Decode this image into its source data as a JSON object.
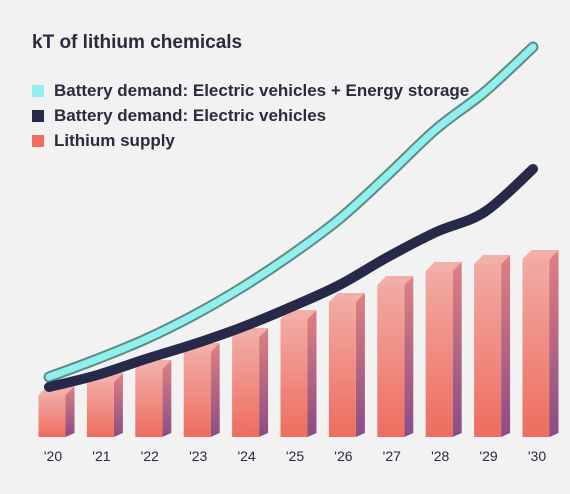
{
  "title": "kT of lithium chemicals",
  "legend": [
    {
      "label": "Battery demand: Electric vehicles + Energy storage",
      "color": "#8ff0ee"
    },
    {
      "label": "Battery demand: Electric vehicles",
      "color": "#262a48"
    },
    {
      "label": "Lithium supply",
      "color": "#ee6d5e"
    }
  ],
  "colors": {
    "bar_top": "#f1aaa4",
    "bar_bottom": "#ee6d5e",
    "bar_side_top": "#e08080",
    "bar_side_bottom": "#8a4c87",
    "ev_es_line": "#8ff0ee",
    "ev_es_outline": "#5f8a86",
    "ev_line": "#262a48"
  },
  "chart_data": {
    "type": "bar",
    "title": "kT of lithium chemicals",
    "categories": [
      "'20",
      "'21",
      "'22",
      "'23",
      "'24",
      "'25",
      "'26",
      "'27",
      "'28",
      "'29",
      "'30"
    ],
    "ylim": [
      0,
      340
    ],
    "grid": false,
    "legend_position": "top-left",
    "series": [
      {
        "name": "Lithium supply",
        "type": "bar",
        "values": [
          42,
          55,
          68,
          85,
          100,
          118,
          135,
          152,
          166,
          173,
          178
        ]
      },
      {
        "name": "Battery demand: Electric vehicles + Energy storage",
        "type": "line",
        "values": [
          60,
          78,
          98,
          122,
          150,
          182,
          218,
          262,
          308,
          345,
          390
        ]
      },
      {
        "name": "Battery demand: Electric vehicles",
        "type": "line",
        "values": [
          50,
          62,
          78,
          93,
          110,
          130,
          152,
          180,
          205,
          225,
          268
        ]
      }
    ]
  }
}
